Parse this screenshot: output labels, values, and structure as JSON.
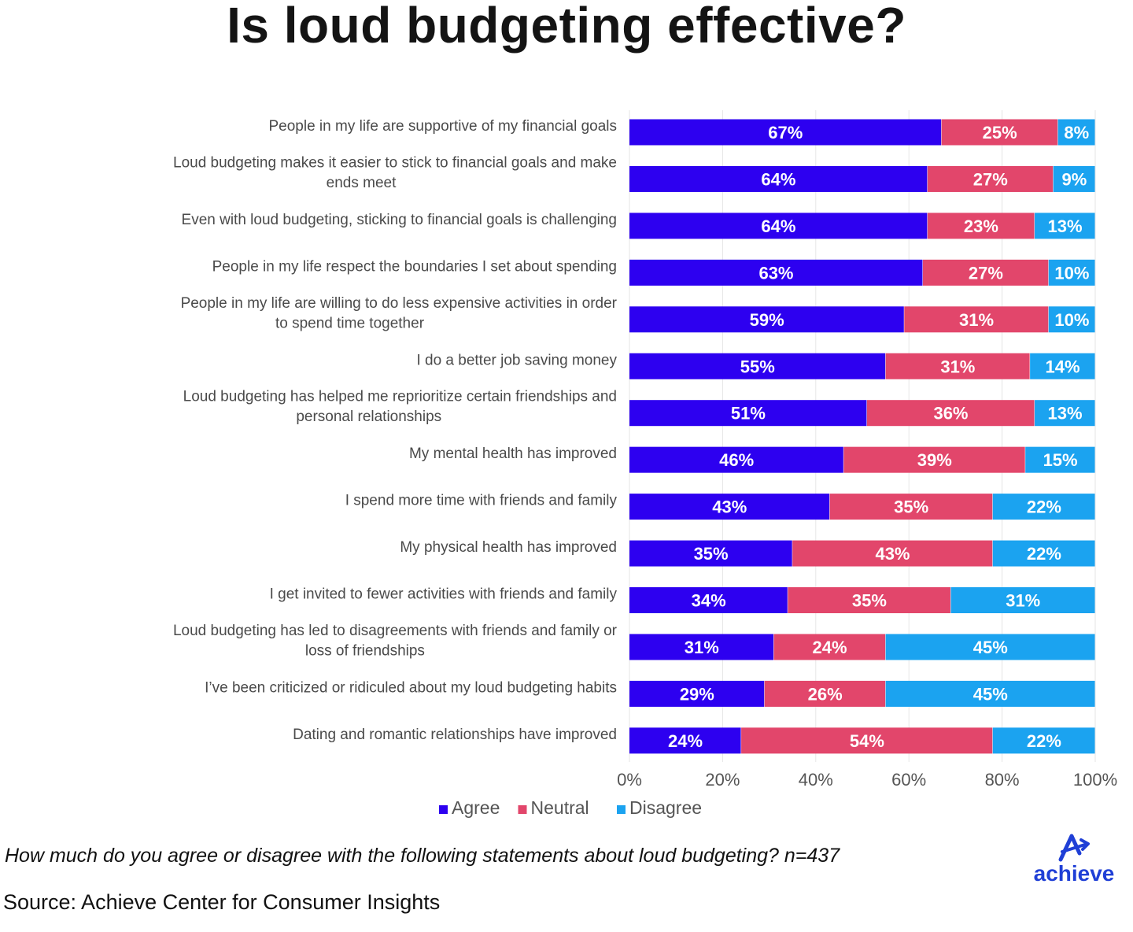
{
  "title": "Is loud budgeting effective?",
  "caption": "How much do you agree or disagree with the following statements about loud budgeting? n=437",
  "source": "Source: Achieve Center for Consumer Insights",
  "logo_text": "achieve",
  "chart_data": {
    "type": "bar",
    "orientation": "horizontal",
    "stacked": true,
    "xlim": [
      0,
      100
    ],
    "xticks": [
      "0%",
      "20%",
      "40%",
      "60%",
      "80%",
      "100%"
    ],
    "legend_position": "bottom-center",
    "categories": [
      "People in my life are supportive of my financial goals",
      "Loud budgeting makes it easier to stick to financial goals and make ends meet",
      "Even with loud budgeting, sticking to financial goals is challenging",
      "People in my life respect the boundaries I set about spending",
      "People in my life are willing to do less expensive activities in order to spend time together",
      "I do a better job saving money",
      "Loud budgeting has helped me reprioritize certain friendships and personal relationships",
      "My mental health has improved",
      "I spend more time with friends and family",
      "My physical health has improved",
      "I get invited to fewer activities with friends and family",
      "Loud budgeting has led to disagreements with friends and family or loss of friendships",
      "I’ve been criticized or ridiculed about my loud budgeting habits",
      "Dating and romantic relationships have improved"
    ],
    "series": [
      {
        "name": "Agree",
        "color": "#2d00f0",
        "values": [
          67,
          64,
          64,
          63,
          59,
          55,
          51,
          46,
          43,
          35,
          34,
          31,
          29,
          24
        ]
      },
      {
        "name": "Neutral",
        "color": "#e2466b",
        "values": [
          25,
          27,
          23,
          27,
          31,
          31,
          36,
          39,
          35,
          43,
          35,
          24,
          26,
          54
        ]
      },
      {
        "name": "Disagree",
        "color": "#1ba3f0",
        "values": [
          8,
          9,
          13,
          10,
          10,
          14,
          13,
          15,
          22,
          22,
          31,
          45,
          45,
          22
        ]
      }
    ]
  }
}
